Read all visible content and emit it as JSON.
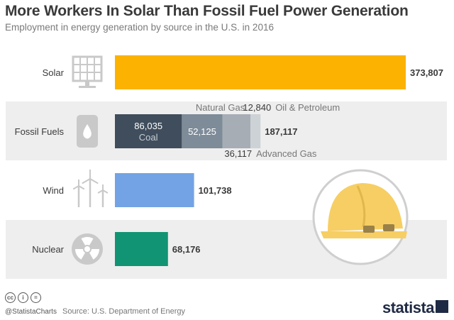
{
  "header": {
    "title": "More Workers In Solar Than Fossil Fuel Power Generation",
    "subtitle": "Employment in energy generation by source in the U.S. in 2016"
  },
  "footer": {
    "handle": "@StatistaCharts",
    "source": "Source: U.S. Department of Energy",
    "logo": "statista"
  },
  "colors": {
    "solar": "#fbb200",
    "coal": "#3f4d5c",
    "natural_gas": "#7e8b98",
    "advanced_gas": "#a6adb4",
    "oil": "#cdd2d6",
    "wind": "#73a3e4",
    "nuclear": "#119473",
    "band": "#eeeeee",
    "icon": "#c9c9c9",
    "text": "#3a3a3a"
  },
  "chart_data": {
    "type": "bar",
    "orientation": "horizontal",
    "stacked": true,
    "categories": [
      "Solar",
      "Fossil Fuels",
      "Wind",
      "Nuclear"
    ],
    "totals": [
      "373,807",
      "187,117",
      "101,738",
      "68,176"
    ],
    "total_values": [
      373807,
      187117,
      101738,
      68176
    ],
    "icons": [
      "solar-panel-icon",
      "oil-barrel-icon",
      "wind-turbine-icon",
      "radiation-icon"
    ],
    "series": [
      {
        "name": "Solar",
        "values": [
          373807,
          0,
          0,
          0
        ]
      },
      {
        "name": "Coal",
        "values": [
          0,
          86035,
          0,
          0
        ]
      },
      {
        "name": "Natural Gas",
        "values": [
          0,
          52125,
          0,
          0
        ]
      },
      {
        "name": "Advanced Gas",
        "values": [
          0,
          36117,
          0,
          0
        ]
      },
      {
        "name": "Oil & Petroleum",
        "values": [
          0,
          12840,
          0,
          0
        ]
      },
      {
        "name": "Wind",
        "values": [
          0,
          0,
          101738,
          0
        ]
      },
      {
        "name": "Nuclear",
        "values": [
          0,
          0,
          0,
          68176
        ]
      }
    ],
    "segment_labels": {
      "coal_value": "86,035",
      "coal_name": "Coal",
      "natural_gas_value": "52,125",
      "natural_gas_name": "Natural Gas",
      "advanced_gas_value": "36,117",
      "advanced_gas_name": "Advanced Gas",
      "oil_value": "12,840",
      "oil_name": "Oil & Petroleum"
    },
    "xlim": [
      0,
      373807
    ],
    "grid": false
  }
}
